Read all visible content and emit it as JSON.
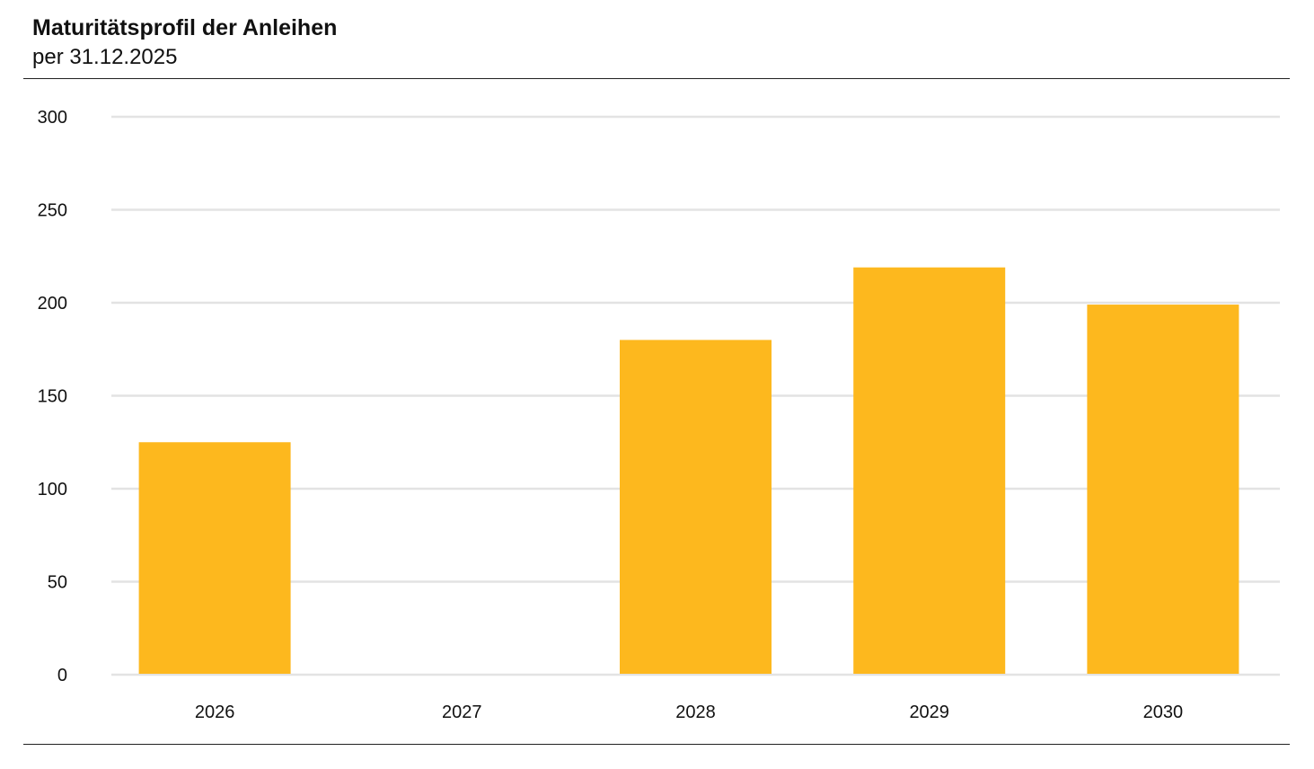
{
  "header": {
    "title": "Maturitätsprofil der Anleihen",
    "subtitle": "per 31.12.2025"
  },
  "colors": {
    "bar": "#FDB81E",
    "gridline": "#E3E3E3",
    "rule": "#222222",
    "text": "#111111"
  },
  "chart_data": {
    "type": "bar",
    "title": "Maturitätsprofil der Anleihen",
    "subtitle": "per 31.12.2025",
    "categories": [
      "2026",
      "2027",
      "2028",
      "2029",
      "2030"
    ],
    "values": [
      125,
      0,
      180,
      219,
      199
    ],
    "ylim": [
      0,
      300
    ],
    "yticks": [
      0,
      50,
      100,
      150,
      200,
      250,
      300
    ],
    "grid": true,
    "legend": "none",
    "xlabel": "",
    "ylabel": ""
  }
}
